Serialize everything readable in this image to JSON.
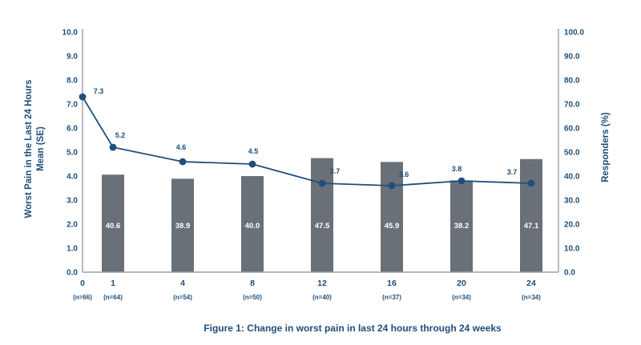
{
  "figure": {
    "caption": "Figure 1: Change in worst pain in last 24 hours through 24 weeks"
  },
  "colors": {
    "accent_navy": "#1f4e79",
    "bar_gray": "#6a7078",
    "axis_gray": "#9aa0a6",
    "bar_label_white": "#ffffff"
  },
  "chart_data": {
    "type": "combo-bar-line",
    "x": {
      "categories": [
        "0",
        "1",
        "4",
        "8",
        "12",
        "16",
        "20",
        "24"
      ],
      "n_labels": [
        "(n=66)",
        "(n=64)",
        "(n=54)",
        "(n=50)",
        "(n=40)",
        "(n=37)",
        "(n=34)",
        "(n=34)"
      ]
    },
    "left_axis": {
      "title_line1": "Worst Pain in the Last 24 Hours",
      "title_line2": "Mean (SE)",
      "min": 0,
      "max": 10,
      "step": 1,
      "tick_labels": [
        "0.0",
        "1.0",
        "2.0",
        "3.0",
        "4.0",
        "5.0",
        "6.0",
        "7.0",
        "8.0",
        "9.0",
        "10.0"
      ]
    },
    "right_axis": {
      "title": "Responders (%)",
      "min": 0,
      "max": 100,
      "step": 10,
      "tick_labels": [
        "0.0",
        "10.0",
        "20.0",
        "30.0",
        "40.0",
        "50.0",
        "60.0",
        "70.0",
        "80.0",
        "90.0",
        "100.0"
      ]
    },
    "series": [
      {
        "name": "Worst pain in the last 24 hours mean",
        "type": "line",
        "axis": "left",
        "color": "#1f4e79",
        "values": [
          7.3,
          5.2,
          4.6,
          4.5,
          3.7,
          3.6,
          3.8,
          3.7
        ]
      },
      {
        "name": "Responders (%)",
        "type": "bar",
        "axis": "right",
        "color": "#6a7078",
        "values": [
          null,
          40.6,
          38.9,
          40.0,
          47.5,
          45.9,
          38.2,
          47.1
        ]
      }
    ],
    "grid": false,
    "legend": "none"
  }
}
